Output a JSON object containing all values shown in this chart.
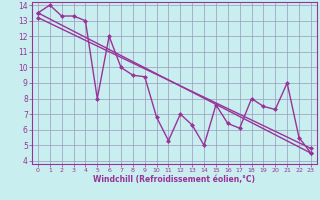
{
  "xlabel": "Windchill (Refroidissement éolien,°C)",
  "bg_color": "#c8eef0",
  "line_color": "#993399",
  "grid_color": "#9999bb",
  "xlim": [
    -0.5,
    23.5
  ],
  "ylim": [
    3.8,
    14.2
  ],
  "yticks": [
    4,
    5,
    6,
    7,
    8,
    9,
    10,
    11,
    12,
    13,
    14
  ],
  "xticks": [
    0,
    1,
    2,
    3,
    4,
    5,
    6,
    7,
    8,
    9,
    10,
    11,
    12,
    13,
    14,
    15,
    16,
    17,
    18,
    19,
    20,
    21,
    22,
    23
  ],
  "main_x": [
    0,
    1,
    2,
    3,
    4,
    5,
    6,
    7,
    8,
    9,
    10,
    11,
    12,
    13,
    14,
    15,
    16,
    17,
    18,
    19,
    20,
    21,
    22,
    23
  ],
  "main_y": [
    13.5,
    14.0,
    13.3,
    13.3,
    13.0,
    8.0,
    12.0,
    10.0,
    9.5,
    9.4,
    6.8,
    5.3,
    7.0,
    6.3,
    5.0,
    7.6,
    6.4,
    6.1,
    8.0,
    7.5,
    7.3,
    9.0,
    5.5,
    4.5
  ],
  "trend1_x": [
    0,
    23
  ],
  "trend1_y": [
    13.5,
    4.5
  ],
  "trend2_x": [
    0,
    23
  ],
  "trend2_y": [
    13.2,
    4.8
  ],
  "line_width": 1.0,
  "marker_size": 2.5
}
